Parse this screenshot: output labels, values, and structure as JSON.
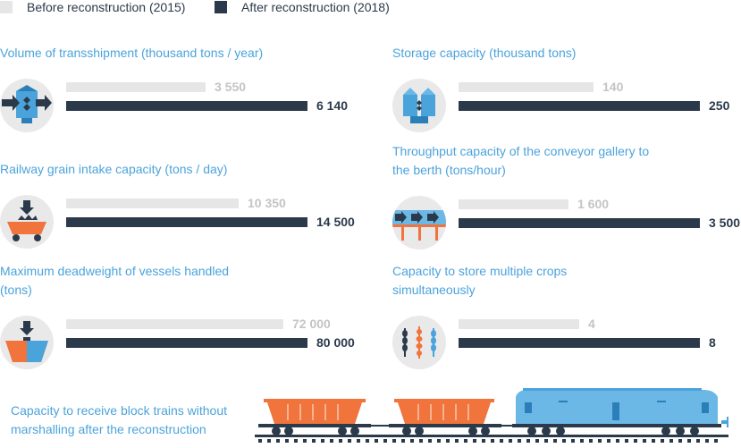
{
  "legend": {
    "before_label": "Before reconstruction (2015)",
    "after_label": "After reconstruction (2018)",
    "before_color": "#e6e6e6",
    "after_color": "#2b3a4a"
  },
  "chart_data": [
    {
      "type": "bar",
      "title_lines": [
        "Volume of transshipment (thousand  tons / year)"
      ],
      "icon": "grain-silo-transfer-icon",
      "series": [
        {
          "name": "Before reconstruction (2015)",
          "value": 3550,
          "label": "3 550"
        },
        {
          "name": "After reconstruction (2018)",
          "value": 6140,
          "label": "6 140"
        }
      ]
    },
    {
      "type": "bar",
      "title_lines": [
        "Storage capacity (thousand tons)"
      ],
      "icon": "storage-silo-icon",
      "series": [
        {
          "name": "Before reconstruction (2015)",
          "value": 140,
          "label": "140"
        },
        {
          "name": "After reconstruction (2018)",
          "value": 250,
          "label": "250"
        }
      ]
    },
    {
      "type": "bar",
      "title_lines": [
        "Railway grain intake capacity (tons / day)"
      ],
      "icon": "grain-wagon-icon",
      "series": [
        {
          "name": "Before reconstruction (2015)",
          "value": 10350,
          "label": "10 350"
        },
        {
          "name": "After reconstruction (2018)",
          "value": 14500,
          "label": "14 500"
        }
      ]
    },
    {
      "type": "bar",
      "title_lines": [
        "Throughput capacity of the conveyor gallery to",
        "the berth (tons/hour)"
      ],
      "icon": "conveyor-gallery-icon",
      "series": [
        {
          "name": "Before reconstruction (2015)",
          "value": 1600,
          "label": "1 600"
        },
        {
          "name": "After reconstruction (2018)",
          "value": 3500,
          "label": "3 500"
        }
      ]
    },
    {
      "type": "bar",
      "title_lines": [
        "Maximum deadweight of vessels handled",
        "(tons)"
      ],
      "icon": "vessel-icon",
      "series": [
        {
          "name": "Before reconstruction (2015)",
          "value": 72000,
          "label": "72 000"
        },
        {
          "name": "After reconstruction (2018)",
          "value": 80000,
          "label": "80 000"
        }
      ]
    },
    {
      "type": "bar",
      "title_lines": [
        "Capacity to store multiple crops",
        "simultaneously"
      ],
      "icon": "multiple-crops-icon",
      "series": [
        {
          "name": "Before reconstruction (2015)",
          "value": 4,
          "label": "4"
        },
        {
          "name": "After reconstruction (2018)",
          "value": 8,
          "label": "8"
        }
      ]
    }
  ],
  "train": {
    "caption_lines": [
      "Capacity to receive block trains without",
      "marshalling after the reconstruction"
    ],
    "icon": "block-train-icon"
  }
}
